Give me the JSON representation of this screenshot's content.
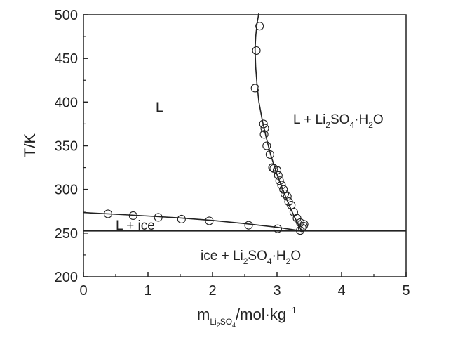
{
  "chart_data": {
    "type": "scatter",
    "title": "",
    "xlabel": {
      "m": "m",
      "sub1": "Li",
      "sub2": "2",
      "sub3": "SO",
      "sub4": "4",
      "unit": "/mol·kg",
      "exp": "−1"
    },
    "ylabel": "T/K",
    "xlim": [
      0,
      5
    ],
    "ylim": [
      200,
      500
    ],
    "xticks": [
      "0",
      "1",
      "2",
      "3",
      "4",
      "5"
    ],
    "yticks": [
      "200",
      "250",
      "300",
      "350",
      "400",
      "450",
      "500"
    ],
    "grid": false,
    "legend": "none",
    "regions": {
      "liquid": "L",
      "liquid_ice": "L + ice",
      "liquid_salt": {
        "a": "L + Li",
        "b": "2",
        "c": "SO",
        "d": "4",
        "e": "·H",
        "f": "2",
        "g": "O"
      },
      "ice_salt": {
        "a": "ice + Li",
        "b": "2",
        "c": "SO",
        "d": "4",
        "e": "·H",
        "f": "2",
        "g": "O"
      }
    },
    "ice_points": {
      "x": [
        0.38,
        0.77,
        1.16,
        1.52,
        1.95,
        2.56,
        3.01,
        3.36
      ],
      "y": [
        272,
        270,
        268,
        266,
        264,
        259,
        255,
        253
      ]
    },
    "salt_points": {
      "x": [
        2.73,
        2.68,
        2.66,
        2.79,
        2.81,
        2.8,
        2.84,
        2.89,
        2.93,
        2.95,
        3.0,
        3.02,
        3.04,
        3.07,
        3.1,
        3.12,
        3.16,
        3.18,
        3.22,
        3.26,
        3.31,
        3.36,
        3.39,
        3.41,
        3.42
      ],
      "y": [
        487,
        459,
        416,
        375,
        370,
        363,
        350,
        340,
        325,
        324,
        322,
        316,
        310,
        305,
        300,
        295,
        292,
        286,
        282,
        274,
        267,
        262,
        256,
        258,
        260
      ]
    },
    "ice_curve": {
      "x": [
        0,
        0.5,
        1.0,
        1.5,
        2.0,
        2.5,
        3.0,
        3.38
      ],
      "y": [
        273.5,
        271.6,
        269.6,
        267.3,
        264.5,
        260.9,
        256.6,
        252.4
      ]
    },
    "salt_curve": {
      "x": [
        3.38,
        3.26,
        3.13,
        3.0,
        2.9,
        2.83,
        2.77,
        2.72,
        2.69,
        2.67,
        2.66,
        2.67,
        2.69,
        2.72
      ],
      "y": [
        252.4,
        270,
        292,
        317,
        340,
        360,
        380,
        400,
        420,
        440,
        460,
        475,
        490,
        502
      ]
    },
    "eutectic_line_y": 252.4
  }
}
